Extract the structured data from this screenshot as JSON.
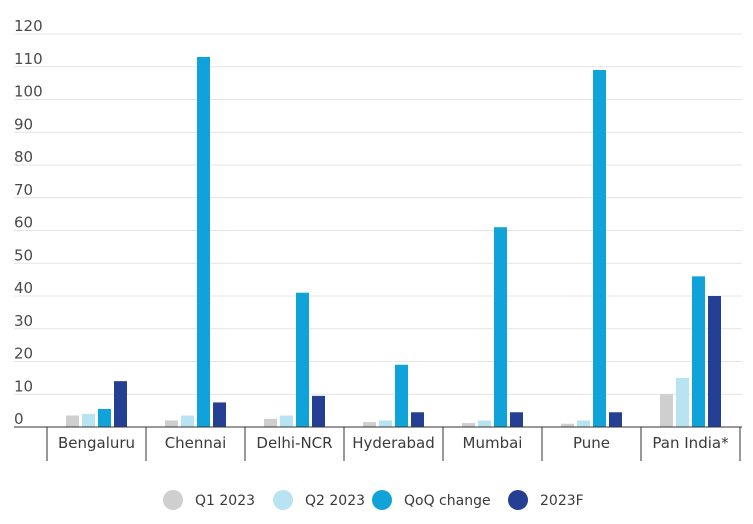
{
  "chart_data": {
    "type": "bar",
    "title": "",
    "xlabel": "",
    "ylabel": "",
    "ylim": [
      0,
      120
    ],
    "yticks": [
      0,
      10,
      20,
      30,
      40,
      50,
      60,
      70,
      80,
      90,
      100,
      110,
      120
    ],
    "grid": true,
    "legend_position": "bottom",
    "categories": [
      "Bengaluru",
      "Chennai",
      "Delhi-NCR",
      "Hyderabad",
      "Mumbai",
      "Pune",
      "Pan India*"
    ],
    "series": [
      {
        "name": "Q1 2023",
        "color": "#cfcfcf",
        "values": [
          3.5,
          2,
          2.5,
          1.5,
          1.2,
          1,
          10
        ]
      },
      {
        "name": "Q2 2023",
        "color": "#b7e3f2",
        "values": [
          4,
          3.5,
          3.5,
          2,
          2,
          2,
          15
        ]
      },
      {
        "name": "QoQ change",
        "color": "#0fa3d9",
        "values": [
          5.5,
          113,
          41,
          19,
          61,
          109,
          46
        ]
      },
      {
        "name": "2023F",
        "color": "#243f93",
        "values": [
          14,
          7.5,
          9.5,
          4.5,
          4.5,
          4.5,
          40
        ]
      }
    ]
  }
}
